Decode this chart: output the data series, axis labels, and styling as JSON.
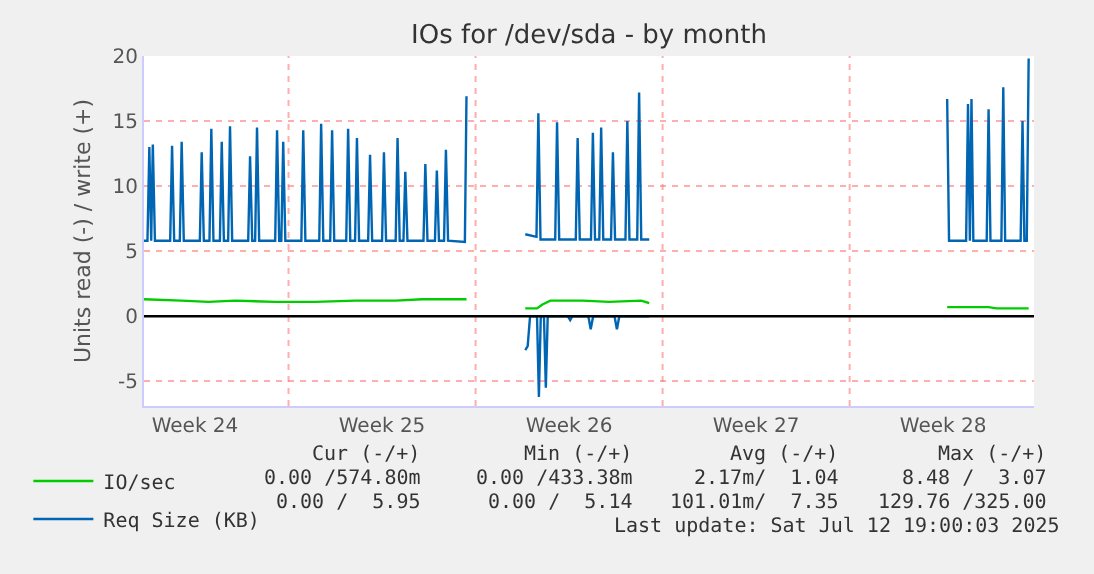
{
  "chart_data": {
    "type": "line",
    "title": "IOs for /dev/sda - by month",
    "ylabel": "Units read (-) / write (+)",
    "xlim": [
      "2025-06-10T14:10",
      "2025-07-13T21:36"
    ],
    "ylim": [
      -6.9,
      20
    ],
    "xticks": [
      {
        "value": "2025-06-12T12:00",
        "label": "Week 24"
      },
      {
        "value": "2025-06-16",
        "label": null
      },
      {
        "value": "2025-06-19T12:00",
        "label": "Week 25"
      },
      {
        "value": "2025-06-23",
        "label": null
      },
      {
        "value": "2025-06-26T12:00",
        "label": "Week 26"
      },
      {
        "value": "2025-06-30",
        "label": null
      },
      {
        "value": "2025-07-03T12:00",
        "label": "Week 27"
      },
      {
        "value": "2025-07-07",
        "label": null
      },
      {
        "value": "2025-07-10T12:00",
        "label": "Week 28"
      }
    ],
    "yticks": [
      -5,
      0,
      5,
      10,
      15,
      20
    ],
    "grid": true,
    "legend": "bottom left",
    "marker": "none",
    "line_style": "solid",
    "ref_lines": [
      {
        "axis": "y",
        "value": 0,
        "color": "#000000"
      }
    ],
    "series": [
      {
        "name": "IO/sec",
        "color": "#00cc00",
        "x": [
          "2025-06-10T14:10",
          "2025-06-12",
          "2025-06-13",
          "2025-06-14",
          "2025-06-15T12:00",
          "2025-06-17",
          "2025-06-18T12:00",
          "2025-06-20",
          "2025-06-21",
          "2025-06-22T15:50",
          "2025-06-23T12:00",
          "2025-06-24T20:38",
          "2025-06-25T07:12",
          "2025-06-25T12:00",
          "2025-06-25T19:12",
          "2025-06-27",
          "2025-06-28",
          "2025-06-29T04:48",
          "2025-06-29T12:00",
          "2025-07-04",
          "2025-07-10T15:36",
          "2025-07-11T12:00",
          "2025-07-12T04:48",
          "2025-07-12T12:00",
          "2025-07-13T16:48"
        ],
        "values": [
          1.3,
          1.2,
          1.1,
          1.2,
          1.1,
          1.1,
          1.2,
          1.2,
          1.3,
          1.3,
          null,
          0.6,
          0.6,
          0.9,
          1.2,
          1.2,
          1.1,
          1.2,
          1.0,
          null,
          0.7,
          0.7,
          0.7,
          0.6,
          0.6
        ]
      },
      {
        "name": "Req Size (KB)",
        "color": "#0066b3",
        "x": [
          "2025-06-10T14:10",
          "2025-06-10T17:17",
          "2025-06-10T18:58",
          "2025-06-10T20:38",
          "2025-06-10T22:05",
          "2025-06-11",
          "2025-06-11T13:41",
          "2025-06-11T15:22",
          "2025-06-11T17:17",
          "2025-06-11T22:19",
          "2025-06-12",
          "2025-06-12T01:55",
          "2025-06-12T16:19",
          "2025-06-12T18:00",
          "2025-06-12T19:55",
          "2025-06-13T00:58",
          "2025-06-13T02:38",
          "2025-06-13T04:34",
          "2025-06-13T10:19",
          "2025-06-13T12:00",
          "2025-06-13T13:55",
          "2025-06-13T17:46",
          "2025-06-13T19:26",
          "2025-06-13T21:22",
          "2025-06-14T11:46",
          "2025-06-14T13:26",
          "2025-06-14T15:22",
          "2025-06-14T18:00",
          "2025-06-14T19:41",
          "2025-06-14T21:36",
          "2025-06-15T12:00",
          "2025-06-15T13:41",
          "2025-06-15T15:36",
          "2025-06-15T17:31",
          "2025-06-15T19:12",
          "2025-06-15T21:07",
          "2025-06-16T11:31",
          "2025-06-16T13:12",
          "2025-06-16T15:07",
          "2025-06-17T03:36",
          "2025-06-17T05:17",
          "2025-06-17T07:12",
          "2025-06-17T13:26",
          "2025-06-17T15:07",
          "2025-06-17T17:02",
          "2025-06-18T03:50",
          "2025-06-18T05:31",
          "2025-06-18T07:26",
          "2025-06-18T11:46",
          "2025-06-18T13:26",
          "2025-06-18T15:22",
          "2025-06-18T23:31",
          "2025-06-19T01:12",
          "2025-06-19T03:07",
          "2025-06-19T12:00",
          "2025-06-19T13:41",
          "2025-06-19T15:36",
          "2025-06-20T00:14",
          "2025-06-20T01:55",
          "2025-06-20T03:50",
          "2025-06-20T07:12",
          "2025-06-20T08:53",
          "2025-06-20T10:48",
          "2025-06-21T01:12",
          "2025-06-21T02:53",
          "2025-06-21T04:48",
          "2025-06-21T11:31",
          "2025-06-21T13:12",
          "2025-06-21T15:07",
          "2025-06-21T19:41",
          "2025-06-21T21:22",
          "2025-06-21T23:17",
          "2025-06-22T14:24",
          "2025-06-22T15:50",
          "2025-06-23T12:00",
          "2025-06-24T20:38",
          "2025-06-25T06:43",
          "2025-06-25T08:24",
          "2025-06-25T10:19",
          "2025-06-25T23:31",
          "2025-06-26T01:12",
          "2025-06-26T03:07",
          "2025-06-26T18:00",
          "2025-06-26T19:41",
          "2025-06-26T21:36",
          "2025-06-27T07:41",
          "2025-06-27T09:22",
          "2025-06-27T11:17",
          "2025-06-27T15:07",
          "2025-06-27T16:48",
          "2025-06-27T18:43",
          "2025-06-28T01:41",
          "2025-06-28T03:22",
          "2025-06-28T05:17",
          "2025-06-28T14:38",
          "2025-06-28T16:19",
          "2025-06-28T18:14",
          "2025-06-29T01:12",
          "2025-06-29T02:53",
          "2025-06-29T04:48",
          "2025-06-29T12:00",
          "2025-07-04",
          "2025-07-10T15:36",
          "2025-07-10T17:17",
          "2025-07-11T08:38",
          "2025-07-11T10:19",
          "2025-07-11T12:00",
          "2025-07-11T13:26",
          "2025-07-11T15:07",
          "2025-07-12T03:07",
          "2025-07-12T04:48",
          "2025-07-12T06:29",
          "2025-07-12T16:19",
          "2025-07-12T18:00",
          "2025-07-12T19:41",
          "2025-07-13T09:36",
          "2025-07-13T11:17",
          "2025-07-13T12:58",
          "2025-07-13T15:07",
          "2025-07-13T16:48"
        ],
        "values": [
          5.8,
          5.8,
          13.0,
          5.8,
          13.2,
          5.8,
          5.8,
          13.1,
          5.8,
          5.8,
          13.4,
          5.8,
          5.8,
          12.6,
          5.8,
          5.8,
          14.4,
          5.8,
          5.8,
          13.4,
          5.8,
          5.8,
          14.6,
          5.8,
          5.8,
          12.3,
          5.8,
          5.8,
          14.5,
          5.8,
          5.8,
          14.3,
          5.8,
          5.8,
          13.4,
          5.8,
          5.8,
          14.3,
          5.8,
          5.8,
          14.8,
          5.8,
          5.8,
          14.3,
          5.8,
          5.8,
          14.4,
          5.8,
          5.8,
          13.7,
          5.8,
          5.8,
          12.4,
          5.8,
          5.8,
          12.6,
          5.8,
          5.8,
          13.7,
          5.8,
          5.8,
          11.1,
          5.8,
          5.8,
          11.7,
          5.8,
          5.8,
          11.2,
          5.8,
          5.8,
          12.8,
          5.8,
          5.7,
          16.9,
          null,
          6.3,
          6.1,
          15.6,
          5.9,
          5.9,
          14.9,
          5.9,
          5.9,
          13.7,
          5.9,
          5.9,
          14.1,
          5.9,
          5.9,
          14.5,
          5.9,
          5.9,
          12.6,
          5.9,
          5.9,
          15.0,
          5.9,
          5.9,
          17.2,
          5.9,
          5.9,
          null,
          16.7,
          5.8,
          5.8,
          16.3,
          5.8,
          16.7,
          5.8,
          5.8,
          15.9,
          5.8,
          5.8,
          17.6,
          5.8,
          5.8,
          15.0,
          5.8,
          5.8,
          19.8
        ]
      },
      {
        "color": "#0066b3",
        "x": [
          "2025-06-24T20:38",
          "2025-06-24T22:48",
          "2025-06-25T00:58",
          "2025-06-25T07:12",
          "2025-06-25T08:53",
          "2025-06-25T10:34",
          "2025-06-25T13:26",
          "2025-06-25T15:07",
          "2025-06-25T16:48",
          "2025-06-26T10:48",
          "2025-06-26T12:58",
          "2025-06-26T14:53",
          "2025-06-27T05:17",
          "2025-06-27T07:26",
          "2025-06-27T09:36",
          "2025-06-28T04:48",
          "2025-06-28T06:58",
          "2025-06-28T09:07",
          "2025-06-29T12:00"
        ],
        "values": [
          -2.6,
          -2.3,
          0,
          0,
          -6.2,
          0,
          0,
          -5.5,
          0,
          0,
          -0.3,
          0,
          0,
          -1.0,
          0,
          0,
          -1.0,
          0,
          0
        ]
      }
    ],
    "annotations": [
      "Cur (-/+)",
      "Min (-/+)",
      "Avg (-/+)",
      "Max (-/+)",
      "0.00 /574.80m",
      "0.00 /433.38m",
      "2.17m/  1.04",
      "8.48 /  3.07",
      "0.00 /  5.95",
      "0.00 /  5.14",
      "101.01m/  7.35",
      "129.76 /325.00",
      "Last update: Sat Jul 12 19:00:03 2025"
    ]
  }
}
